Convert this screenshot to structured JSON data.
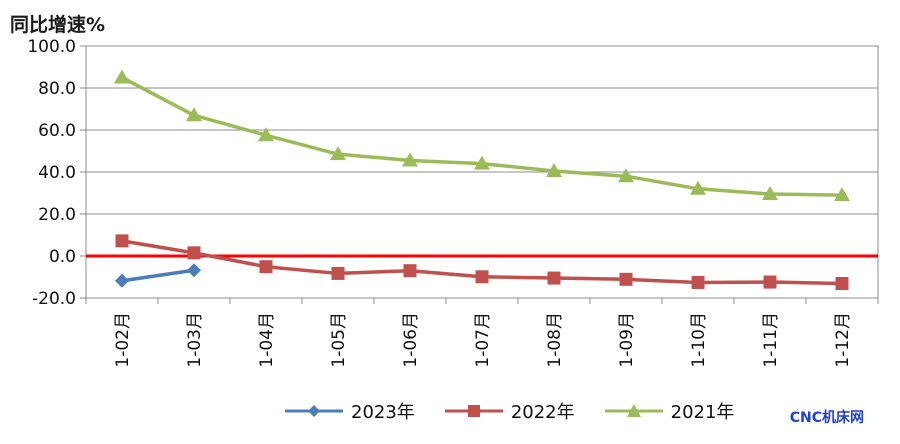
{
  "chart_data": {
    "type": "line",
    "title": "",
    "ylabel": "同比增速%",
    "xlabel": "",
    "categories": [
      "1-02月",
      "1-03月",
      "1-04月",
      "1-05月",
      "1-06月",
      "1-07月",
      "1-08月",
      "1-09月",
      "1-10月",
      "1-11月",
      "1-12月"
    ],
    "ylim": [
      -20,
      100
    ],
    "yticks": [
      "-20.0",
      "0.0",
      "20.0",
      "40.0",
      "60.0",
      "80.0",
      "100.0"
    ],
    "grid": true,
    "legend_position": "bottom",
    "series": [
      {
        "name": "2023年",
        "color": "#4a7ebb",
        "marker": "diamond",
        "values": [
          -11.8,
          -6.8,
          null,
          null,
          null,
          null,
          null,
          null,
          null,
          null,
          null
        ]
      },
      {
        "name": "2022年",
        "color": "#c0504d",
        "marker": "square",
        "values": [
          7.2,
          1.5,
          -5.1,
          -8.3,
          -7.0,
          -9.9,
          -10.5,
          -11.1,
          -12.6,
          -12.4,
          -13.1
        ]
      },
      {
        "name": "2021年",
        "color": "#9bbb59",
        "marker": "triangle",
        "values": [
          85.0,
          67.0,
          57.5,
          48.5,
          45.5,
          44.0,
          40.5,
          38.0,
          32.0,
          29.5,
          29.0
        ]
      }
    ]
  },
  "watermark": "CNC机床网"
}
